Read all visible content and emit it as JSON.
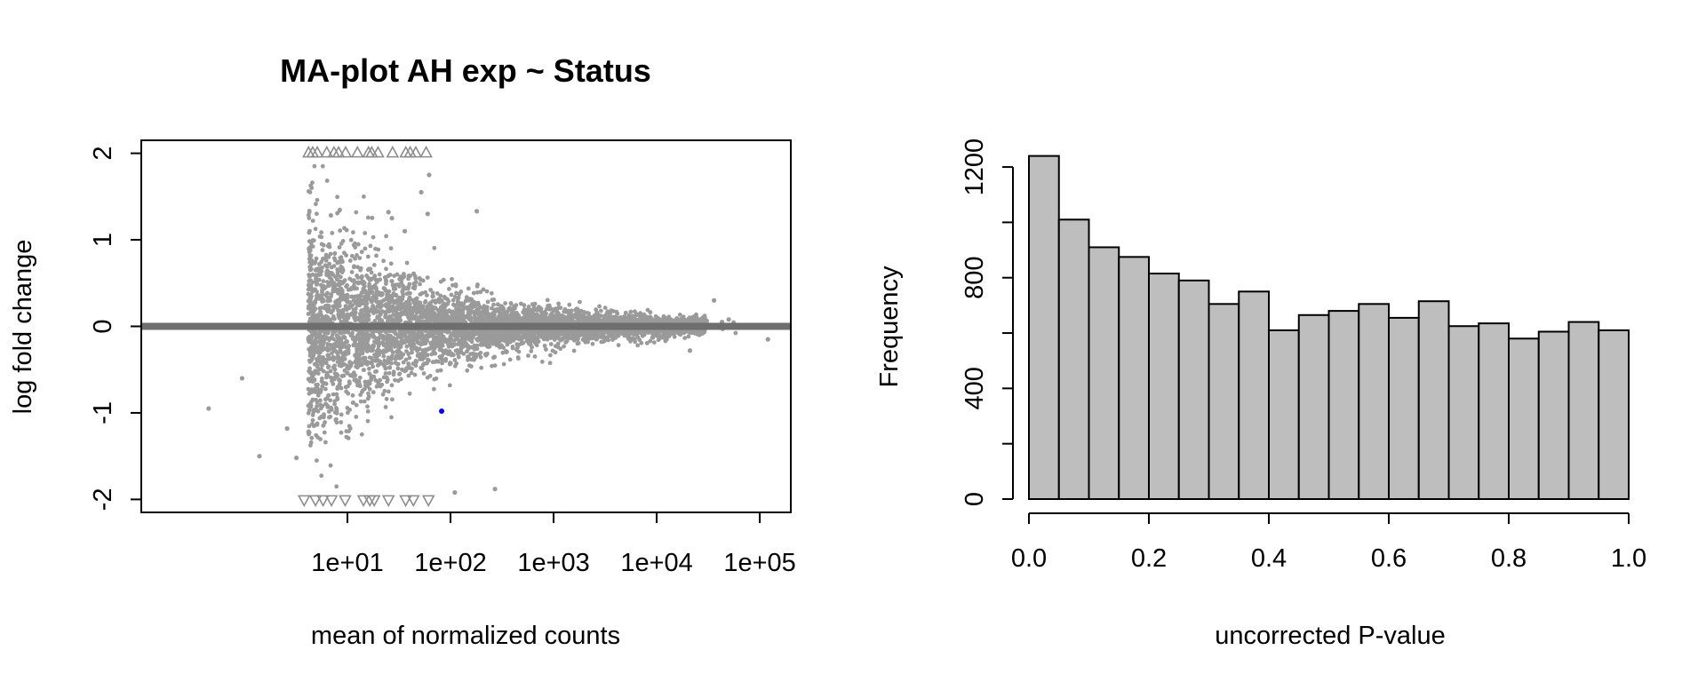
{
  "chart_data": [
    {
      "type": "scatter",
      "title": "MA-plot AH exp ~ Status",
      "xlabel": "mean of normalized counts",
      "ylabel": "log fold change",
      "x_scale": "log10",
      "xlim": [
        0.1,
        200000
      ],
      "ylim": [
        -2.15,
        2.15
      ],
      "x_ticks": [
        10,
        100,
        1000,
        10000,
        100000
      ],
      "x_tick_labels": [
        "1e+01",
        "1e+02",
        "1e+03",
        "1e+04",
        "1e+05"
      ],
      "y_ticks": [
        -2,
        -1,
        0,
        1,
        2
      ],
      "y_tick_labels": [
        "-2",
        "-1",
        "0",
        "1",
        "2"
      ],
      "reference_line": 0,
      "colors": {
        "points": "#9a9a9a",
        "significant": "#0000ff",
        "reference_line": "#6e6e6e",
        "clipped_markers": "#8c8c8c"
      },
      "clipped_up_x": [
        4.2,
        4.6,
        5.1,
        6.3,
        7.4,
        8.2,
        9.6,
        12.5,
        16.0,
        17.2,
        19.8,
        27.4,
        36.8,
        40.6,
        46.0,
        58.0
      ],
      "clipped_down_x": [
        3.8,
        4.9,
        5.8,
        7.0,
        9.5,
        14.3,
        16.5,
        18.2,
        25.0,
        36.7,
        43.6,
        61.1
      ],
      "outliers": [
        [
          0.45,
          -0.95
        ],
        [
          0.95,
          -0.6
        ],
        [
          1.4,
          -1.5
        ],
        [
          25,
          1.32
        ],
        [
          27,
          1.25
        ],
        [
          36,
          1.1
        ],
        [
          52,
          1.55
        ],
        [
          62,
          1.75
        ],
        [
          110,
          -1.92
        ],
        [
          270,
          -1.88
        ],
        [
          2.6,
          -1.18
        ],
        [
          3.2,
          -1.52
        ],
        [
          60,
          1.3
        ],
        [
          180,
          1.33
        ],
        [
          120000,
          -0.15
        ],
        [
          43000,
          0.05
        ],
        [
          50000,
          0.08
        ],
        [
          36000,
          0.3
        ],
        [
          21000,
          -0.28
        ]
      ],
      "significant": [
        [
          82,
          -0.98
        ]
      ]
    },
    {
      "type": "bar",
      "subtype": "histogram",
      "xlabel": "uncorrected P-value",
      "ylabel": "Frequency",
      "xlim": [
        0,
        1
      ],
      "ylim": [
        0,
        1250
      ],
      "bin_width": 0.05,
      "bin_edges": [
        0,
        0.05,
        0.1,
        0.15,
        0.2,
        0.25,
        0.3,
        0.35,
        0.4,
        0.45,
        0.5,
        0.55,
        0.6,
        0.65,
        0.7,
        0.75,
        0.8,
        0.85,
        0.9,
        0.95,
        1.0
      ],
      "values": [
        1240,
        1010,
        910,
        875,
        815,
        790,
        705,
        750,
        610,
        665,
        680,
        705,
        655,
        715,
        625,
        635,
        580,
        605,
        640,
        610
      ],
      "x_ticks": [
        0.0,
        0.2,
        0.4,
        0.6,
        0.8,
        1.0
      ],
      "x_tick_labels": [
        "0.0",
        "0.2",
        "0.4",
        "0.6",
        "0.8",
        "1.0"
      ],
      "y_ticks": [
        0,
        200,
        400,
        600,
        800,
        1000,
        1200
      ],
      "y_tick_labels": [
        "0",
        "",
        "400",
        "",
        "800",
        "",
        "1200"
      ],
      "bar_color": "#bebebe"
    }
  ]
}
